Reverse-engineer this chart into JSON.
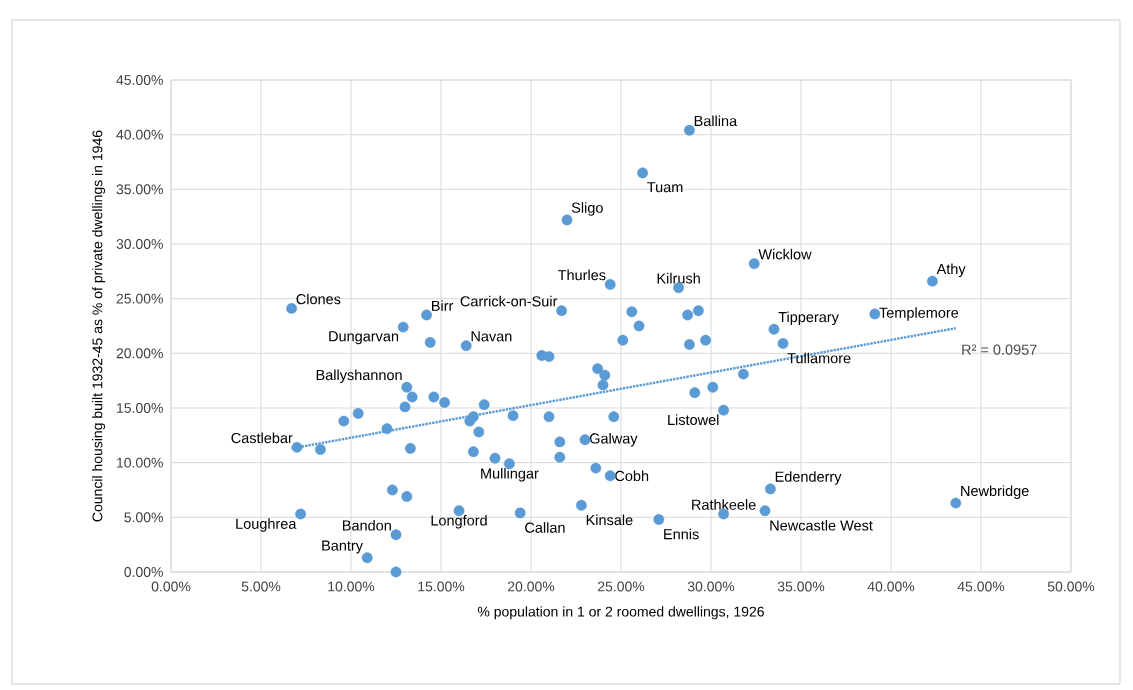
{
  "chart_data": {
    "type": "scatter",
    "xlabel": "% population in 1 or 2 roomed dwellings, 1926",
    "ylabel": "Council housing built 1932-45 as % of private dwellings in 1946",
    "xlim": [
      0,
      50
    ],
    "ylim": [
      0,
      45
    ],
    "xticks": [
      {
        "value": 0,
        "label": "0.00%"
      },
      {
        "value": 5,
        "label": "5.00%"
      },
      {
        "value": 10,
        "label": "10.00%"
      },
      {
        "value": 15,
        "label": "15.00%"
      },
      {
        "value": 20,
        "label": "20.00%"
      },
      {
        "value": 25,
        "label": "25.00%"
      },
      {
        "value": 30,
        "label": "30.00%"
      },
      {
        "value": 35,
        "label": "35.00%"
      },
      {
        "value": 40,
        "label": "40.00%"
      },
      {
        "value": 45,
        "label": "45.00%"
      },
      {
        "value": 50,
        "label": "50.00%"
      }
    ],
    "yticks": [
      {
        "value": 0,
        "label": "0.00%"
      },
      {
        "value": 5,
        "label": "5.00%"
      },
      {
        "value": 10,
        "label": "10.00%"
      },
      {
        "value": 15,
        "label": "15.00%"
      },
      {
        "value": 20,
        "label": "20.00%"
      },
      {
        "value": 25,
        "label": "25.00%"
      },
      {
        "value": 30,
        "label": "30.00%"
      },
      {
        "value": 35,
        "label": "35.00%"
      },
      {
        "value": 40,
        "label": "40.00%"
      },
      {
        "value": 45,
        "label": "45.00%"
      }
    ],
    "grid": true,
    "series": [
      {
        "color": "#5b9bd5",
        "marker": "circle",
        "x": [
          6.7,
          14.2,
          12.9,
          14.4,
          16.4,
          28.8,
          26.2,
          22.0,
          32.4,
          24.4,
          28.2,
          21.7,
          25.6,
          28.7,
          29.3,
          26.0,
          33.5,
          25.1,
          28.8,
          29.7,
          34.0,
          42.3,
          39.1,
          13.1,
          13.4,
          13.0,
          14.6,
          15.2,
          17.4,
          10.4,
          9.6,
          16.8,
          16.6,
          12.0,
          7.0,
          8.3,
          13.3,
          17.1,
          16.8,
          12.3,
          13.1,
          7.2,
          16.0,
          12.5,
          10.9,
          12.5,
          20.6,
          21.0,
          23.7,
          24.1,
          24.0,
          31.8,
          30.1,
          29.1,
          30.7,
          19.0,
          21.0,
          24.6,
          21.6,
          23.0,
          21.6,
          18.0,
          18.8,
          23.6,
          24.4,
          33.3,
          22.8,
          19.4,
          27.1,
          30.7,
          33.0,
          43.6
        ],
        "values": [
          24.1,
          23.5,
          22.4,
          21.0,
          20.7,
          40.4,
          36.5,
          32.2,
          28.2,
          26.3,
          26.0,
          23.9,
          23.8,
          23.5,
          23.9,
          22.5,
          22.2,
          21.2,
          20.8,
          21.2,
          20.9,
          26.6,
          23.6,
          16.9,
          16.0,
          15.1,
          16.0,
          15.5,
          15.3,
          14.5,
          13.8,
          14.2,
          13.8,
          13.1,
          11.4,
          11.2,
          11.3,
          12.8,
          11.0,
          7.5,
          6.9,
          5.3,
          5.6,
          3.4,
          1.3,
          0.0,
          19.8,
          19.7,
          18.6,
          18.0,
          17.1,
          18.1,
          16.9,
          16.4,
          14.8,
          14.3,
          14.2,
          14.2,
          11.9,
          12.1,
          10.5,
          10.4,
          9.9,
          9.5,
          8.8,
          7.6,
          6.1,
          5.4,
          4.8,
          5.3,
          5.6,
          6.3
        ]
      },
      {
        "type": "line",
        "color": "#5b9bd5",
        "marker": "none",
        "line_style": "dotted",
        "x": [
          6.7,
          43.6
        ],
        "values": [
          11.3,
          22.3
        ]
      }
    ],
    "annotations": [
      {
        "text": "Clones",
        "x": 6.7,
        "y": 24.1
      },
      {
        "text": "Birr",
        "x": 14.2,
        "y": 23.5
      },
      {
        "text": "Dungarvan",
        "x": 12.9,
        "y": 22.4
      },
      {
        "text": "Navan",
        "x": 16.4,
        "y": 20.7
      },
      {
        "text": "Ballina",
        "x": 28.8,
        "y": 40.4
      },
      {
        "text": "Tuam",
        "x": 26.2,
        "y": 36.5
      },
      {
        "text": "Sligo",
        "x": 22.0,
        "y": 32.2
      },
      {
        "text": "Wicklow",
        "x": 32.4,
        "y": 28.2
      },
      {
        "text": "Thurles",
        "x": 24.4,
        "y": 26.3
      },
      {
        "text": "Kilrush",
        "x": 28.2,
        "y": 26.0
      },
      {
        "text": "Carrick-on-Suir",
        "x": 21.7,
        "y": 23.9
      },
      {
        "text": "Tipperary",
        "x": 33.5,
        "y": 22.2
      },
      {
        "text": "Tullamore",
        "x": 34.0,
        "y": 20.9
      },
      {
        "text": "Athy",
        "x": 42.3,
        "y": 26.6
      },
      {
        "text": "Templemore",
        "x": 39.1,
        "y": 23.6
      },
      {
        "text": "Ballyshannon",
        "x": 13.1,
        "y": 16.9
      },
      {
        "text": "Castlebar",
        "x": 7.0,
        "y": 11.4
      },
      {
        "text": "Loughrea",
        "x": 7.2,
        "y": 5.3
      },
      {
        "text": "Longford",
        "x": 16.0,
        "y": 5.6
      },
      {
        "text": "Bandon",
        "x": 12.5,
        "y": 3.4
      },
      {
        "text": "Bantry",
        "x": 10.9,
        "y": 1.3
      },
      {
        "text": "Listowel",
        "x": 30.7,
        "y": 14.8
      },
      {
        "text": "Galway",
        "x": 23.0,
        "y": 12.1
      },
      {
        "text": "Mullingar",
        "x": 18.8,
        "y": 9.9
      },
      {
        "text": "Cobh",
        "x": 24.4,
        "y": 8.8
      },
      {
        "text": "Edenderry",
        "x": 33.3,
        "y": 7.6
      },
      {
        "text": "Kinsale",
        "x": 22.8,
        "y": 6.1
      },
      {
        "text": "Callan",
        "x": 19.4,
        "y": 5.4
      },
      {
        "text": "Ennis",
        "x": 27.1,
        "y": 4.8
      },
      {
        "text": "Rathkeele",
        "x": 30.7,
        "y": 5.3
      },
      {
        "text": "Newcastle West",
        "x": 33.0,
        "y": 5.6
      },
      {
        "text": "Newbridge",
        "x": 43.6,
        "y": 6.3
      },
      "R² = 0.0957"
    ]
  }
}
